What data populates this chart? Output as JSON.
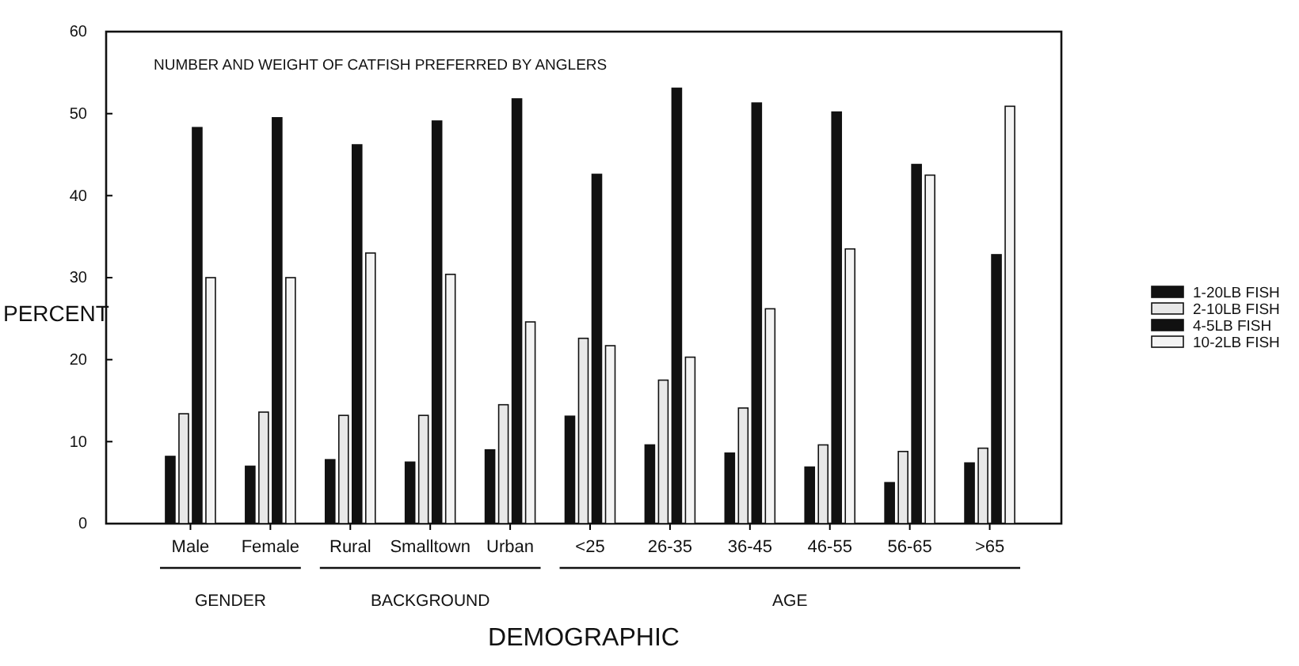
{
  "chart_data": {
    "type": "bar",
    "title": "NUMBER AND WEIGHT OF CATFISH PREFERRED BY ANGLERS",
    "xlabel": "DEMOGRAPHIC",
    "ylabel": "PERCENT",
    "categories": [
      "Male",
      "Female",
      "Rural",
      "Smalltown",
      "Urban",
      "<25",
      "26-35",
      "36-45",
      "46-55",
      "56-65",
      ">65"
    ],
    "series": [
      {
        "name": "1-20LB FISH",
        "color": "#111111",
        "values": [
          8.2,
          7,
          7.8,
          7.5,
          9,
          13.1,
          9.6,
          8.6,
          6.9,
          5,
          7.4
        ]
      },
      {
        "name": "2-10LB FISH",
        "color": "#e8e8e8",
        "values": [
          13.4,
          13.6,
          13.2,
          13.2,
          14.5,
          22.6,
          17.5,
          14.1,
          9.6,
          8.8,
          9.2
        ]
      },
      {
        "name": "4-5LB FISH",
        "color": "#111111",
        "values": [
          48.3,
          49.5,
          46.2,
          49.1,
          51.8,
          42.6,
          53.1,
          51.3,
          50.2,
          43.8,
          32.8
        ]
      },
      {
        "name": "10-2LB FISH",
        "color": "#f4f4f4",
        "values": [
          30,
          30,
          33,
          30.4,
          24.6,
          21.7,
          20.3,
          26.2,
          33.5,
          42.5,
          50.9
        ]
      }
    ],
    "annotations": [
      "GENDER",
      "BACKGROUND",
      "AGE"
    ],
    "ylim": [
      0,
      60
    ],
    "yticks": [
      0,
      10,
      20,
      30,
      40,
      50,
      60
    ],
    "grid": false,
    "legend": "right"
  }
}
